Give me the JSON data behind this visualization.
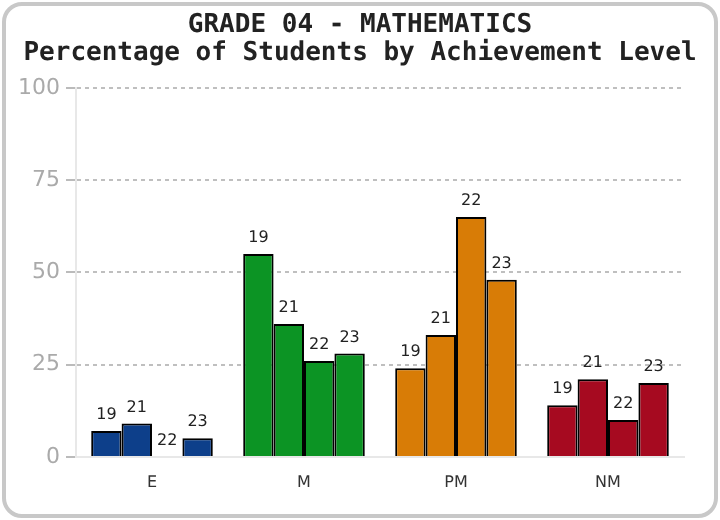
{
  "chart_data": {
    "type": "bar",
    "title": "GRADE 04 - MATHEMATICS",
    "subtitle": "Percentage of Students by Achievement Level",
    "categories": [
      "E",
      "M",
      "PM",
      "NM"
    ],
    "series": [
      {
        "name": "19",
        "colors": [
          "#0d3f8a",
          "#0c9424",
          "#d87c06",
          "#a60a20"
        ],
        "values": [
          7,
          55,
          24,
          14
        ]
      },
      {
        "name": "21",
        "colors": [
          "#0d3f8a",
          "#0c9424",
          "#d87c06",
          "#a60a20"
        ],
        "values": [
          9,
          36,
          33,
          21
        ]
      },
      {
        "name": "22",
        "colors": [
          "#0d3f8a",
          "#0c9424",
          "#d87c06",
          "#a60a20"
        ],
        "values": [
          0,
          26,
          65,
          10
        ]
      },
      {
        "name": "23",
        "colors": [
          "#0d3f8a",
          "#0c9424",
          "#d87c06",
          "#a60a20"
        ],
        "values": [
          5,
          28,
          48,
          20
        ]
      }
    ],
    "ylim": [
      0,
      100
    ],
    "yticks": [
      0,
      25,
      50,
      75,
      100
    ],
    "grid": "y",
    "legend": false
  }
}
